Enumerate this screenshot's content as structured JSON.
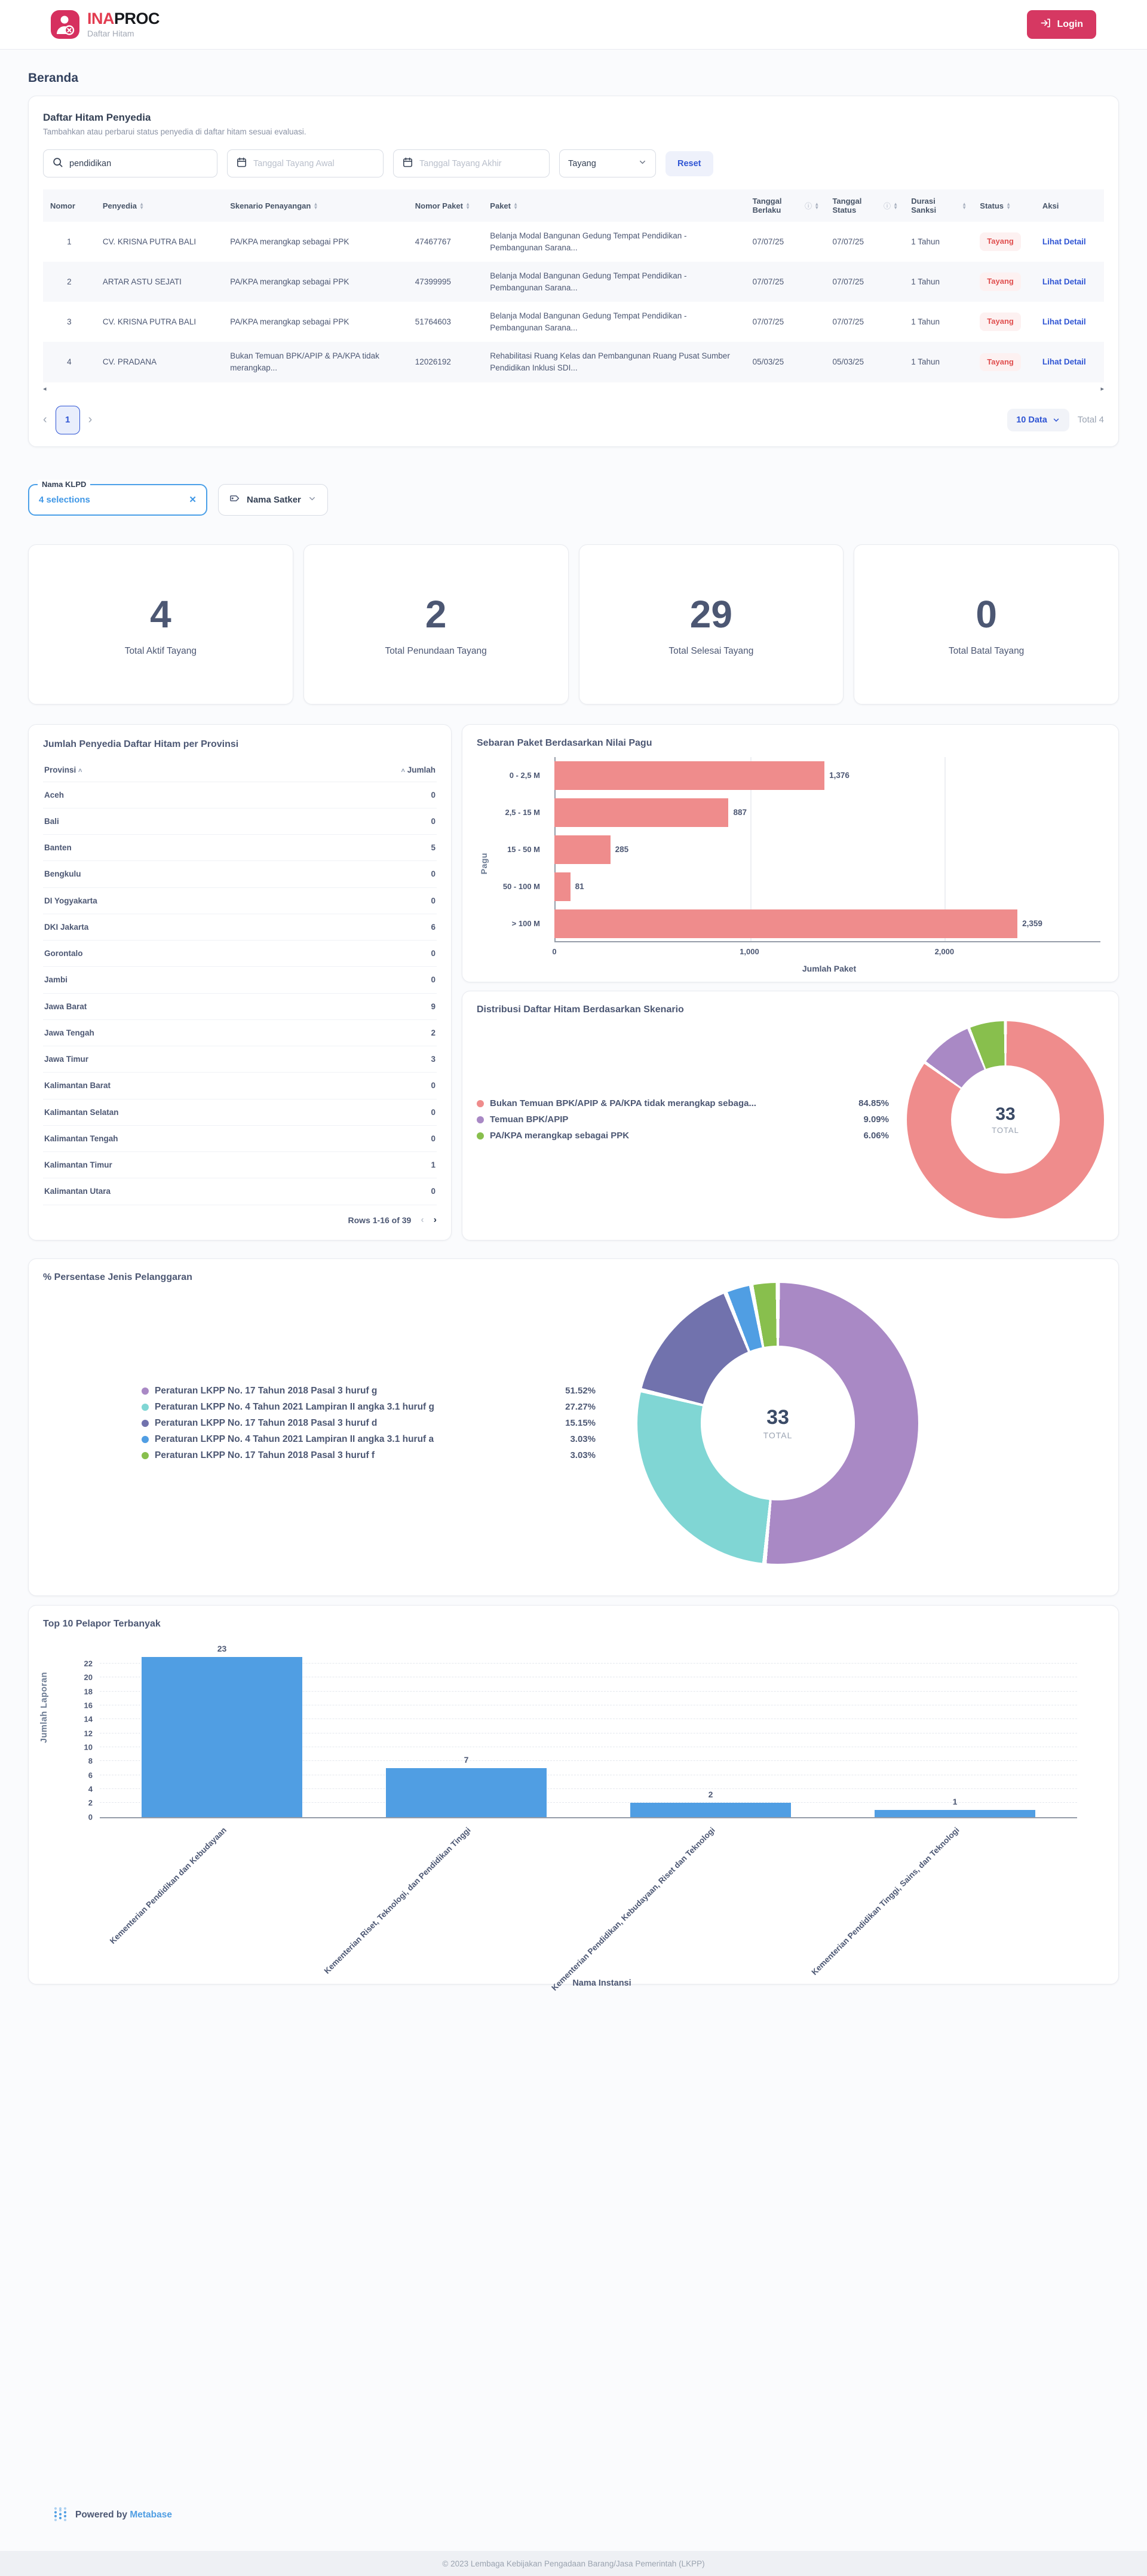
{
  "header": {
    "brand_ina": "INA",
    "brand_proc": "PROC",
    "brand_subtitle": "Daftar Hitam",
    "login_label": "Login"
  },
  "page_title": "Beranda",
  "blacklist": {
    "title": "Daftar Hitam Penyedia",
    "subtitle": "Tambahkan atau perbarui status penyedia di daftar hitam sesuai evaluasi.",
    "search_value": "pendidikan",
    "date_start_placeholder": "Tanggal Tayang Awal",
    "date_end_placeholder": "Tanggal Tayang Akhir",
    "status_filter_value": "Tayang",
    "reset_label": "Reset",
    "columns": [
      "Nomor",
      "Penyedia",
      "Skenario Penayangan",
      "Nomor Paket",
      "Paket",
      "Tanggal Berlaku",
      "Tanggal Status",
      "Durasi Sanksi",
      "Status",
      "Aksi"
    ],
    "rows": [
      {
        "nomor": "1",
        "penyedia": "CV. KRISNA PUTRA BALI",
        "skenario": "PA/KPA merangkap sebagai PPK",
        "nomor_paket": "47467767",
        "paket": "Belanja Modal Bangunan Gedung Tempat Pendidikan - Pembangunan Sarana...",
        "tanggal_berlaku": "07/07/25",
        "tanggal_status": "07/07/25",
        "durasi": "1 Tahun",
        "status": "Tayang",
        "aksi": "Lihat Detail"
      },
      {
        "nomor": "2",
        "penyedia": "ARTAR ASTU SEJATI",
        "skenario": "PA/KPA merangkap sebagai PPK",
        "nomor_paket": "47399995",
        "paket": "Belanja Modal Bangunan Gedung Tempat Pendidikan - Pembangunan Sarana...",
        "tanggal_berlaku": "07/07/25",
        "tanggal_status": "07/07/25",
        "durasi": "1 Tahun",
        "status": "Tayang",
        "aksi": "Lihat Detail"
      },
      {
        "nomor": "3",
        "penyedia": "CV. KRISNA PUTRA BALI",
        "skenario": "PA/KPA merangkap sebagai PPK",
        "nomor_paket": "51764603",
        "paket": "Belanja Modal Bangunan Gedung Tempat Pendidikan - Pembangunan Sarana...",
        "tanggal_berlaku": "07/07/25",
        "tanggal_status": "07/07/25",
        "durasi": "1 Tahun",
        "status": "Tayang",
        "aksi": "Lihat Detail"
      },
      {
        "nomor": "4",
        "penyedia": "CV. PRADANA",
        "skenario": "Bukan Temuan BPK/APIP & PA/KPA tidak merangkap...",
        "nomor_paket": "12026192",
        "paket": "Rehabilitasi Ruang Kelas dan Pembangunan Ruang Pusat Sumber Pendidikan Inklusi SDI...",
        "tanggal_berlaku": "05/03/25",
        "tanggal_status": "05/03/25",
        "durasi": "1 Tahun",
        "status": "Tayang",
        "aksi": "Lihat Detail"
      }
    ],
    "pagination": {
      "current_page": "1",
      "page_size_label": "10 Data",
      "total_label": "Total 4"
    }
  },
  "filters": {
    "klpd_label": "Nama KLPD",
    "klpd_value": "4 selections",
    "satker_label": "Nama Satker"
  },
  "stat_cards": [
    {
      "value": "4",
      "label": "Total Aktif Tayang"
    },
    {
      "value": "2",
      "label": "Total Penundaan Tayang"
    },
    {
      "value": "29",
      "label": "Total Selesai Tayang"
    },
    {
      "value": "0",
      "label": "Total Batal Tayang"
    }
  ],
  "chart_data": [
    {
      "type": "table",
      "title": "Jumlah Penyedia Daftar Hitam per Provinsi",
      "columns": [
        "Provinsi",
        "Jumlah"
      ],
      "rows": [
        [
          "Aceh",
          "0"
        ],
        [
          "Bali",
          "0"
        ],
        [
          "Banten",
          "5"
        ],
        [
          "Bengkulu",
          "0"
        ],
        [
          "DI Yogyakarta",
          "0"
        ],
        [
          "DKI Jakarta",
          "6"
        ],
        [
          "Gorontalo",
          "0"
        ],
        [
          "Jambi",
          "0"
        ],
        [
          "Jawa Barat",
          "9"
        ],
        [
          "Jawa Tengah",
          "2"
        ],
        [
          "Jawa Timur",
          "3"
        ],
        [
          "Kalimantan Barat",
          "0"
        ],
        [
          "Kalimantan Selatan",
          "0"
        ],
        [
          "Kalimantan Tengah",
          "0"
        ],
        [
          "Kalimantan Timur",
          "1"
        ],
        [
          "Kalimantan Utara",
          "0"
        ]
      ],
      "footer": "Rows 1-16 of 39"
    },
    {
      "type": "bar",
      "title": "Sebaran Paket Berdasarkan Nilai Pagu",
      "orientation": "horizontal",
      "categories": [
        "0 - 2,5 M",
        "2,5 - 15 M",
        "15 - 50 M",
        "50 - 100 M",
        "> 100 M"
      ],
      "values": [
        1376,
        887,
        285,
        81,
        2359
      ],
      "value_labels": [
        "1,376",
        "887",
        "285",
        "81",
        "2,359"
      ],
      "xlabel": "Jumlah Paket",
      "ylabel": "Pagu",
      "xlim": [
        0,
        2800
      ],
      "xticks": [
        {
          "v": 0,
          "label": "0"
        },
        {
          "v": 1000,
          "label": "1,000"
        },
        {
          "v": 2000,
          "label": "2,000"
        }
      ],
      "bar_color": "#EF8C8C"
    },
    {
      "type": "pie",
      "title": "Distribusi Daftar Hitam Berdasarkan Skenario",
      "total": "33",
      "total_label": "TOTAL",
      "legend_position": "left",
      "slices": [
        {
          "label": "Bukan Temuan BPK/APIP & PA/KPA tidak merangkap sebaga...",
          "pct": "84.85%",
          "value": 84.85,
          "color": "#EF8C8C"
        },
        {
          "label": "Temuan BPK/APIP",
          "pct": "9.09%",
          "value": 9.09,
          "color": "#A989C5"
        },
        {
          "label": "PA/KPA merangkap sebagai PPK",
          "pct": "6.06%",
          "value": 6.06,
          "color": "#88BF4D"
        }
      ]
    },
    {
      "type": "pie",
      "title": "% Persentase Jenis Pelanggaran",
      "total": "33",
      "total_label": "TOTAL",
      "legend_position": "left",
      "slices": [
        {
          "label": "Peraturan LKPP No. 17 Tahun 2018 Pasal 3 huruf g",
          "pct": "51.52%",
          "value": 51.52,
          "color": "#A989C5"
        },
        {
          "label": "Peraturan LKPP No. 4 Tahun 2021 Lampiran II angka 3.1 huruf g",
          "pct": "27.27%",
          "value": 27.27,
          "color": "#80D6D4"
        },
        {
          "label": "Peraturan LKPP No. 17 Tahun 2018 Pasal 3 huruf d",
          "pct": "15.15%",
          "value": 15.15,
          "color": "#7172AD"
        },
        {
          "label": "Peraturan LKPP No. 4 Tahun 2021 Lampiran II angka 3.1 huruf a",
          "pct": "3.03%",
          "value": 3.03,
          "color": "#509EE3"
        },
        {
          "label": "Peraturan LKPP No. 17 Tahun 2018 Pasal 3 huruf f",
          "pct": "3.03%",
          "value": 3.03,
          "color": "#88BF4D"
        }
      ]
    },
    {
      "type": "bar",
      "title": "Top 10 Pelapor Terbanyak",
      "orientation": "vertical",
      "categories": [
        "Kementerian Pendidikan dan Kebudayaan",
        "Kementerian Riset, Teknologi, dan Pendidikan Tinggi",
        "Kementerian Pendidikan, Kebudayaan, Riset dan Teknologi",
        "Kementerian Pendidikan Tinggi, Sains, dan Teknologi"
      ],
      "values": [
        23,
        7,
        2,
        1
      ],
      "xlabel": "Nama Instansi",
      "ylabel": "Jumlah Laporan",
      "ylim": [
        0,
        23
      ],
      "ytick_step": 2,
      "bar_color": "#509EE3"
    }
  ],
  "footer": {
    "powered_prefix": "Powered by",
    "powered_brand": "Metabase",
    "copyright": "© 2023 Lembaga Kebijakan Pengadaan Barang/Jasa Pemerintah (LKPP)"
  }
}
